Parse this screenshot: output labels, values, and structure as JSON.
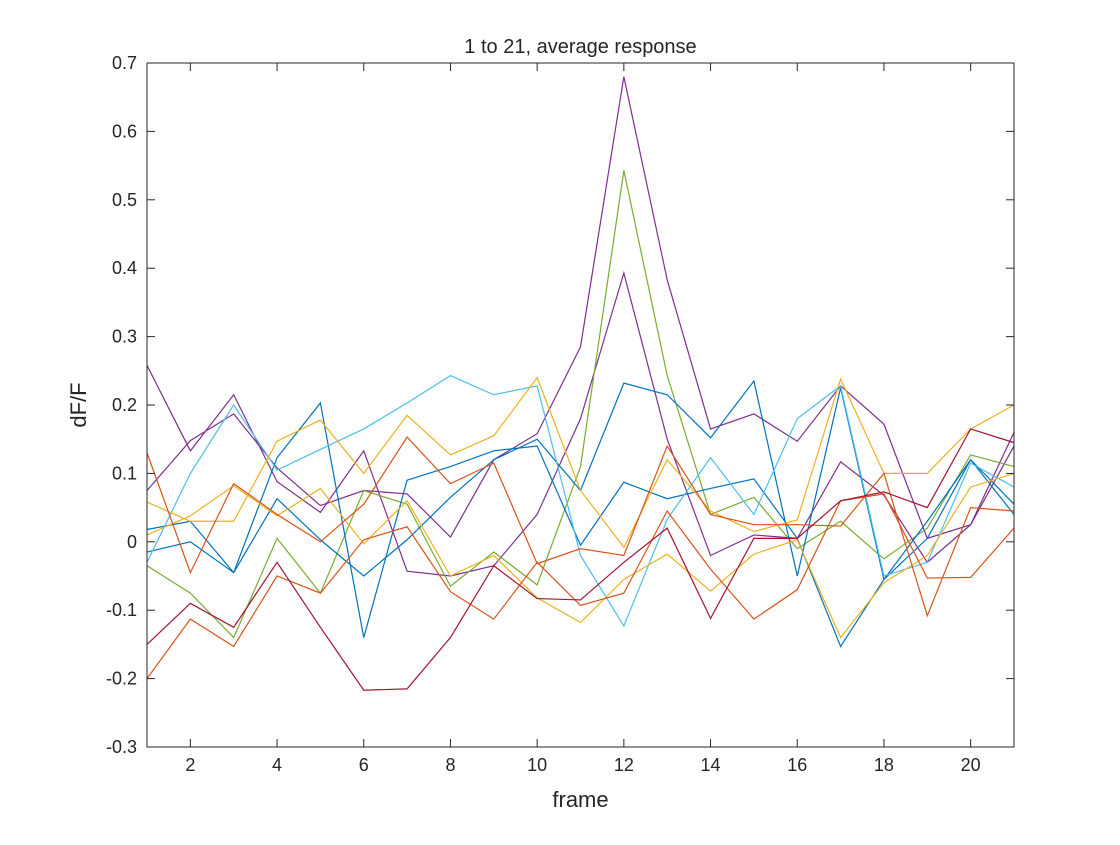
{
  "chart_data": {
    "type": "line",
    "title": "1 to 21, average response",
    "xlabel": "frame",
    "ylabel": "dF/F",
    "xlim": [
      1,
      21
    ],
    "ylim": [
      -0.3,
      0.7
    ],
    "xticks": [
      2,
      4,
      6,
      8,
      10,
      12,
      14,
      16,
      18,
      20
    ],
    "yticks": [
      -0.3,
      -0.2,
      -0.1,
      0,
      0.1,
      0.2,
      0.3,
      0.4,
      0.5,
      0.6,
      0.7
    ],
    "ytick_labels": [
      "-0.3",
      "-0.2",
      "-0.1",
      "0",
      "0.1",
      "0.2",
      "0.3",
      "0.4",
      "0.5",
      "0.6",
      "0.7"
    ],
    "grid": false,
    "x": [
      1,
      2,
      3,
      4,
      5,
      6,
      7,
      8,
      9,
      10,
      11,
      12,
      13,
      14,
      15,
      16,
      17,
      18,
      19,
      20,
      21
    ],
    "series": [
      {
        "color": "#7E2F8E",
        "values": [
          0.258,
          0.133,
          0.215,
          0.088,
          0.043,
          0.133,
          -0.043,
          -0.05,
          -0.035,
          0.04,
          0.18,
          0.393,
          0.15,
          -0.02,
          0.01,
          0.005,
          0.117,
          0.068,
          -0.03,
          0.025,
          0.16
        ]
      },
      {
        "color": "#7E2F8E",
        "values": [
          0.075,
          0.148,
          0.187,
          0.108,
          0.053,
          0.075,
          0.07,
          0.007,
          0.12,
          0.158,
          0.285,
          0.68,
          0.383,
          0.165,
          0.187,
          0.147,
          0.228,
          0.172,
          0.005,
          0.025,
          0.14
        ]
      },
      {
        "color": "#77AC30",
        "values": [
          -0.035,
          -0.075,
          -0.14,
          0.005,
          -0.075,
          0.075,
          0.055,
          -0.065,
          -0.015,
          -0.063,
          0.11,
          0.543,
          0.243,
          0.04,
          0.065,
          -0.01,
          0.03,
          -0.025,
          0.02,
          0.127,
          0.11
        ]
      },
      {
        "color": "#0072BD",
        "values": [
          0.018,
          0.03,
          -0.045,
          0.063,
          0.003,
          -0.05,
          0.003,
          0.065,
          0.12,
          0.15,
          0.075,
          0.232,
          0.215,
          0.152,
          0.235,
          -0.05,
          0.225,
          -0.055,
          0.005,
          0.12,
          0.055
        ]
      },
      {
        "color": "#0072BD",
        "values": [
          -0.015,
          0.0,
          -0.045,
          0.123,
          0.203,
          -0.14,
          0.09,
          0.11,
          0.133,
          0.14,
          -0.005,
          0.087,
          0.063,
          0.078,
          0.092,
          0.005,
          -0.153,
          -0.055,
          0.03,
          0.12,
          0.04
        ]
      },
      {
        "color": "#4DBEEE",
        "values": [
          -0.03,
          0.1,
          0.2,
          0.105,
          0.135,
          0.165,
          0.203,
          0.243,
          0.215,
          0.228,
          -0.02,
          -0.123,
          0.033,
          0.123,
          0.04,
          0.18,
          0.228,
          -0.05,
          -0.03,
          0.115,
          0.08
        ]
      },
      {
        "color": "#EDB120",
        "values": [
          0.058,
          0.03,
          0.03,
          0.147,
          0.178,
          0.1,
          0.185,
          0.127,
          0.155,
          0.24,
          0.075,
          -0.008,
          0.12,
          0.045,
          0.015,
          0.032,
          0.238,
          0.1,
          0.1,
          0.165,
          0.2
        ]
      },
      {
        "color": "#EDB120",
        "values": [
          0.01,
          0.038,
          0.082,
          0.038,
          0.078,
          -0.003,
          0.06,
          -0.05,
          -0.02,
          -0.082,
          -0.118,
          -0.055,
          -0.018,
          -0.072,
          -0.018,
          0.003,
          -0.14,
          -0.06,
          -0.02,
          0.08,
          0.1
        ]
      },
      {
        "color": "#D95319",
        "values": [
          0.13,
          -0.045,
          0.085,
          0.04,
          0.0,
          0.055,
          0.153,
          0.085,
          0.115,
          -0.032,
          -0.01,
          -0.02,
          0.14,
          0.04,
          0.025,
          0.025,
          0.023,
          0.1,
          -0.108,
          0.05,
          0.045
        ]
      },
      {
        "color": "#D95319",
        "values": [
          -0.2,
          -0.113,
          -0.153,
          -0.05,
          -0.075,
          0.003,
          0.022,
          -0.073,
          -0.113,
          -0.03,
          -0.093,
          -0.075,
          0.045,
          -0.04,
          -0.113,
          -0.07,
          0.06,
          0.07,
          -0.053,
          -0.052,
          0.02
        ]
      },
      {
        "color": "#A2142F",
        "values": [
          -0.15,
          -0.09,
          -0.125,
          -0.03,
          -0.125,
          -0.217,
          -0.215,
          -0.14,
          -0.035,
          -0.083,
          -0.085,
          -0.03,
          0.02,
          -0.112,
          0.005,
          0.005,
          0.06,
          0.073,
          0.05,
          0.165,
          0.145
        ]
      }
    ]
  }
}
